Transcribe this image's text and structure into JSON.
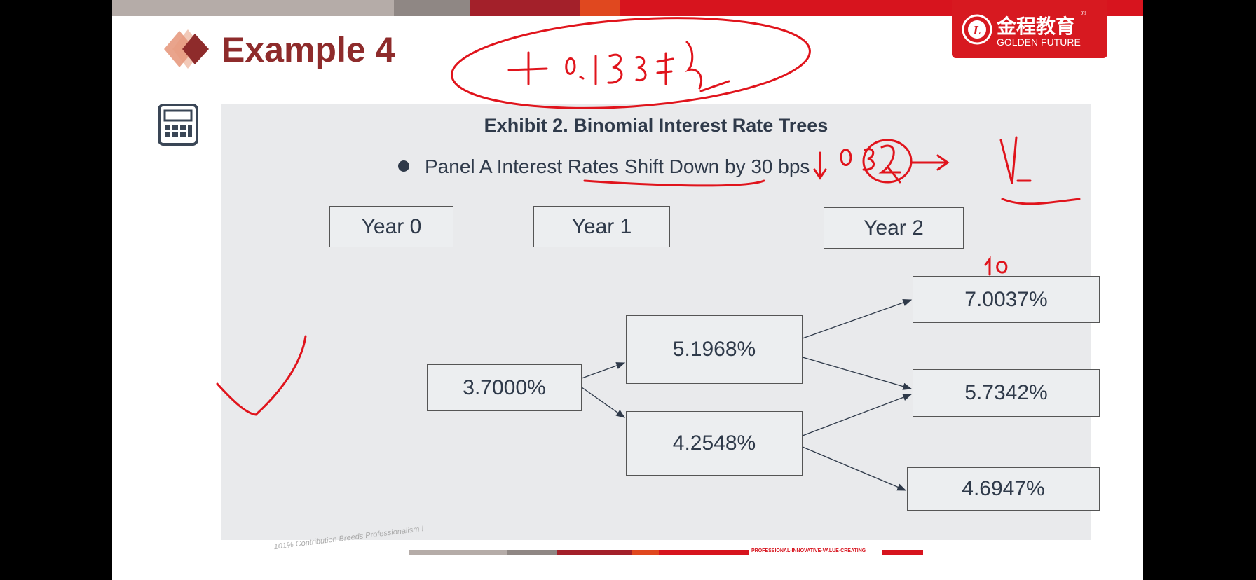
{
  "header": {
    "title": "Example 4"
  },
  "logo": {
    "chinese": "金程教育",
    "english": "GOLDEN FUTURE",
    "registered": "®"
  },
  "exhibit": {
    "title": "Exhibit 2. Binomial Interest Rate Trees",
    "bullet": "Panel A Interest Rates Shift Down by 30 bps",
    "years": [
      "Year 0",
      "Year 1",
      "Year 2"
    ],
    "nodes": {
      "y0": "3.7000%",
      "y1_up": "5.1968%",
      "y1_down": "4.2548%",
      "y2_uu": "7.0037%",
      "y2_ud": "5.7342%",
      "y2_dd": "4.6947%"
    }
  },
  "footer": {
    "slogan": "101% Contribution Breeds Professionalism !",
    "tagline": "PROFESSIONAL-INNOVATIVE-VALUE-CREATING"
  },
  "colors": {
    "accent": "#d71920",
    "title": "#8e2b2b",
    "panel": "#e9eaec",
    "ink": "#e0141c"
  },
  "icons": [
    "diamond-logo-icon",
    "calculator-icon"
  ]
}
